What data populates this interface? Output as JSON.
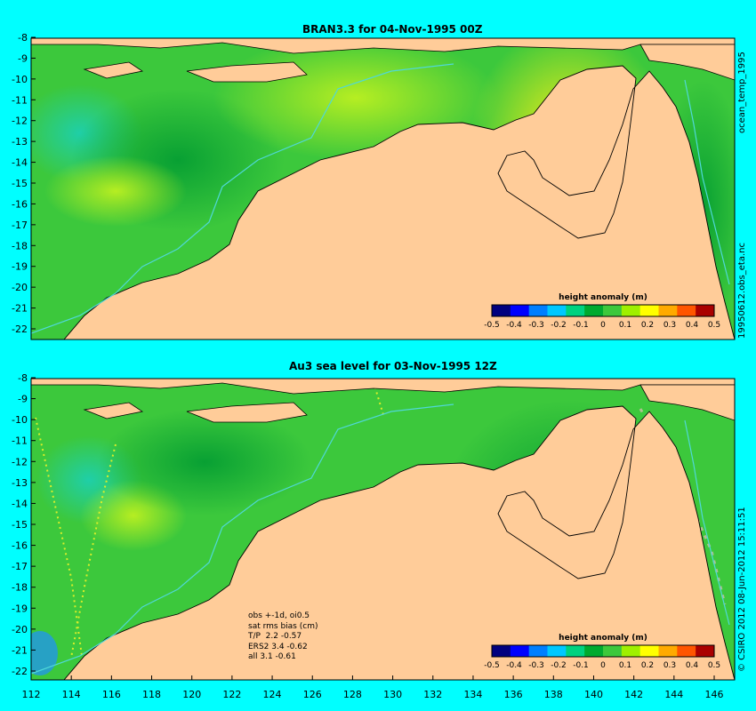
{
  "panels": {
    "top": {
      "title": "BRAN3.3  for 04-Nov-1995 00Z"
    },
    "bottom": {
      "title": "Au3 sea level  for 03-Nov-1995 12Z"
    }
  },
  "axes": {
    "y_ticks": [
      "-8",
      "-9",
      "-10",
      "-11",
      "-12",
      "-13",
      "-14",
      "-15",
      "-16",
      "-17",
      "-18",
      "-19",
      "-20",
      "-21",
      "-22"
    ],
    "x_ticks": [
      "112",
      "114",
      "116",
      "118",
      "120",
      "122",
      "124",
      "126",
      "128",
      "130",
      "132",
      "134",
      "136",
      "138",
      "140",
      "142",
      "144",
      "146"
    ]
  },
  "colorbar": {
    "label": "height anomaly (m)",
    "ticks": [
      "-0.5",
      "-0.4",
      "-0.3",
      "-0.2",
      "-0.1",
      "0",
      "0.1",
      "0.2",
      "0.3",
      "0.4",
      "0.5"
    ],
    "colors": [
      "#00007f",
      "#0000ff",
      "#007fff",
      "#00c8ff",
      "#00d27f",
      "#00aa2f",
      "#3cc83c",
      "#9ff000",
      "#ffff00",
      "#ffaa00",
      "#ff5500",
      "#aa0000"
    ]
  },
  "side_text": {
    "top1": "ocean_temp_1995",
    "top2": "19950612.obs_eta.nc",
    "bottom": "© CSIRO 2012  08-Jun-2012 15:11:51"
  },
  "stats_lines": {
    "l1": "obs +-1d, oi0.5",
    "l2": "sat rms bias (cm)",
    "l3": "T/P  2.2 -0.57",
    "l4": "ERS2 3.4 -0.62",
    "l5": "all 3.1 -0.61"
  },
  "colors": {
    "background": "#00ffff",
    "land": "#ffcc99",
    "coast": "#000000",
    "isobath": "#4fd8d8"
  }
}
